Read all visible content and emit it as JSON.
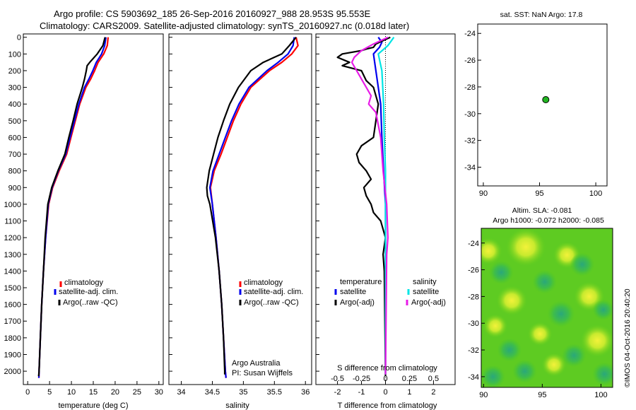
{
  "header": {
    "line1": "Argo profile: CS 5903692_185 26-Sep-2016 20160927_988 28.953S 95.553E",
    "line2": "Climatology: CARS2009. Satellite-adjusted climatology: synTS_20160927.nc (0.018d later)"
  },
  "colors": {
    "climatology": "#ff0000",
    "satellite": "#0000ee",
    "argo": "#000000",
    "salinity_satellite": "#00e5e5",
    "salinity_argo": "#e81ce8",
    "marker": "#22b522"
  },
  "chart_data": [
    {
      "type": "line",
      "panel": "temperature",
      "xlabel": "temperature (deg C)",
      "ylabel": "",
      "xlim": [
        -1,
        31
      ],
      "ylim": [
        2080,
        0
      ],
      "xticks": [
        0,
        5,
        10,
        15,
        20,
        25,
        30
      ],
      "yticks": [
        0,
        100,
        200,
        300,
        400,
        500,
        600,
        700,
        800,
        900,
        1000,
        1100,
        1200,
        1300,
        1400,
        1500,
        1600,
        1700,
        1800,
        1900,
        2000
      ],
      "legend": [
        "climatology",
        "satellite-adj. clim.",
        "Argo(..raw -QC)"
      ],
      "legend_position": "lower-right",
      "series": [
        {
          "name": "climatology",
          "depth": [
            0,
            50,
            100,
            150,
            200,
            250,
            300,
            400,
            500,
            600,
            700,
            800,
            900,
            1000,
            1200,
            1400,
            1600,
            1800,
            2000,
            2040
          ],
          "values": [
            18.4,
            18.2,
            17.4,
            16.1,
            15.3,
            14.4,
            13.3,
            11.9,
            10.9,
            9.9,
            8.9,
            7.2,
            5.7,
            4.8,
            4.1,
            3.6,
            3.2,
            2.9,
            2.6,
            2.55
          ]
        },
        {
          "name": "satellite-adj. clim.",
          "depth": [
            0,
            50,
            100,
            150,
            200,
            250,
            300,
            400,
            500,
            600,
            700,
            800,
            900,
            1000,
            1200,
            1400,
            1600,
            1800,
            2000,
            2040
          ],
          "values": [
            17.9,
            17.6,
            16.9,
            15.7,
            14.9,
            14.0,
            13.0,
            11.7,
            10.7,
            9.7,
            8.7,
            7.0,
            5.6,
            4.7,
            4.1,
            3.6,
            3.2,
            2.9,
            2.6,
            2.55
          ]
        },
        {
          "name": "Argo(..raw -QC)",
          "depth": [
            0,
            50,
            100,
            150,
            170,
            200,
            250,
            300,
            400,
            500,
            600,
            700,
            800,
            900,
            1000,
            1200,
            1400,
            1600,
            1800,
            2000,
            2030
          ],
          "values": [
            17.7,
            17.2,
            15.9,
            14.2,
            13.6,
            13.4,
            13.0,
            12.5,
            11.3,
            10.4,
            9.4,
            8.5,
            6.9,
            5.5,
            4.6,
            4.0,
            3.6,
            3.2,
            2.9,
            2.6,
            2.5
          ]
        }
      ]
    },
    {
      "type": "line",
      "panel": "salinity",
      "xlabel": "salinity",
      "ylabel": "",
      "xlim": [
        33.8,
        36.1
      ],
      "ylim": [
        2080,
        0
      ],
      "xticks": [
        34,
        34.5,
        35,
        35.5,
        36
      ],
      "legend": [
        "climatology",
        "satellite-adj. clim.",
        "Argo(..raw -QC)"
      ],
      "legend_position": "lower-right",
      "annotation": [
        "Argo Australia",
        "PI: Susan Wijffels"
      ],
      "series": [
        {
          "name": "climatology",
          "depth": [
            0,
            50,
            100,
            150,
            200,
            300,
            400,
            500,
            600,
            700,
            800,
            900,
            1000,
            1200,
            1400,
            1600,
            1800,
            2000,
            2040
          ],
          "values": [
            35.85,
            35.88,
            35.78,
            35.62,
            35.42,
            35.12,
            34.96,
            34.84,
            34.74,
            34.64,
            34.53,
            34.47,
            34.5,
            34.56,
            34.61,
            34.65,
            34.68,
            34.71,
            34.72
          ]
        },
        {
          "name": "satellite-adj. clim.",
          "depth": [
            0,
            50,
            100,
            150,
            200,
            300,
            400,
            500,
            600,
            700,
            800,
            900,
            1000,
            1200,
            1400,
            1600,
            1800,
            2000,
            2040
          ],
          "values": [
            35.82,
            35.8,
            35.72,
            35.56,
            35.38,
            35.09,
            34.93,
            34.81,
            34.71,
            34.61,
            34.51,
            34.46,
            34.5,
            34.56,
            34.61,
            34.65,
            34.68,
            34.71,
            34.72
          ]
        },
        {
          "name": "Argo(..raw -QC)",
          "depth": [
            0,
            50,
            100,
            150,
            200,
            300,
            400,
            500,
            600,
            700,
            800,
            900,
            950,
            1000,
            1200,
            1400,
            1600,
            1800,
            2000,
            2020
          ],
          "values": [
            35.85,
            35.74,
            35.62,
            35.32,
            35.12,
            34.92,
            34.78,
            34.68,
            34.59,
            34.52,
            34.45,
            34.41,
            34.42,
            34.46,
            34.55,
            34.61,
            34.65,
            34.68,
            34.7,
            34.7
          ]
        }
      ]
    },
    {
      "type": "line",
      "panel": "difference",
      "xlabel": "T difference from climatology",
      "ylabel": "",
      "xlim": [
        -2.9,
        2.9
      ],
      "ylim": [
        2080,
        0
      ],
      "xticks": [
        -2,
        -1,
        0,
        1,
        2
      ],
      "secondary_xaxis": {
        "label": "S difference from climatology",
        "ticks": [
          "-0.5",
          "-0.25",
          "0",
          "0.25",
          "0.5"
        ]
      },
      "legend_groups": [
        {
          "title": "temperature",
          "items": [
            "satellite",
            "Argo(-adj)"
          ]
        },
        {
          "title": "salinity",
          "items": [
            "satellite",
            "Argo(-adj)"
          ]
        }
      ],
      "series": [
        {
          "name": "temperature satellite",
          "depth": [
            0,
            30,
            60,
            100,
            150,
            200,
            300,
            400,
            600,
            800,
            1000,
            1200,
            1400,
            2000,
            2020
          ],
          "values": [
            -0.3,
            -0.15,
            -0.25,
            -0.5,
            -0.45,
            -0.4,
            -0.3,
            -0.2,
            -0.15,
            -0.08,
            0,
            0,
            0,
            0,
            0
          ]
        },
        {
          "name": "temperature Argo(-adj)",
          "depth": [
            0,
            20,
            40,
            60,
            70,
            80,
            100,
            120,
            150,
            170,
            200,
            260,
            300,
            400,
            500,
            600,
            650,
            700,
            750,
            800,
            850,
            900,
            950,
            1000,
            1050,
            1100,
            1200,
            1300,
            1400,
            2000,
            2030
          ],
          "values": [
            0.2,
            -0.1,
            -0.4,
            -0.5,
            -0.8,
            -1.0,
            -1.8,
            -2.0,
            -1.5,
            -1.8,
            -1.0,
            -0.8,
            -0.5,
            -0.3,
            -0.4,
            -0.5,
            -1.0,
            -1.2,
            -1.1,
            -0.8,
            -0.6,
            -0.9,
            -0.8,
            -0.6,
            -0.5,
            -0.2,
            0.0,
            -0.1,
            -0.05,
            0,
            0
          ]
        },
        {
          "name": "salinity satellite",
          "depth": [
            0,
            50,
            100,
            200,
            400,
            600,
            800,
            1000,
            1200,
            2020
          ],
          "values": [
            0.35,
            0.1,
            -0.3,
            -0.15,
            -0.08,
            -0.05,
            0,
            0,
            0,
            0
          ]
        },
        {
          "name": "salinity Argo(-adj)",
          "depth": [
            0,
            40,
            80,
            120,
            150,
            200,
            250,
            300,
            350,
            400,
            450,
            600,
            800,
            1000,
            1200,
            1300,
            2020
          ],
          "values": [
            0.1,
            -0.5,
            -1.0,
            -1.3,
            -1.4,
            -1.2,
            -1.0,
            -0.8,
            -0.6,
            -0.7,
            -0.4,
            -0.2,
            -0.1,
            0.05,
            0.1,
            0.05,
            0
          ]
        }
      ]
    },
    {
      "type": "scatter",
      "panel": "location",
      "title": "sat. SST: NaN Argo: 17.8",
      "xlim": [
        89.5,
        101
      ],
      "ylim": [
        -35.4,
        -23.3
      ],
      "xticks": [
        90,
        95,
        100
      ],
      "yticks": [
        -24,
        -26,
        -28,
        -30,
        -32,
        -34
      ],
      "points": [
        {
          "x": 95.553,
          "y": -28.953
        }
      ]
    },
    {
      "type": "heatmap",
      "panel": "altimetry",
      "title_lines": [
        "Altim. SLA: -0.081",
        "Argo h1000: -0.072 h2000: -0.085"
      ],
      "xlim": [
        89.8,
        101
      ],
      "ylim": [
        -34.8,
        -22.9
      ],
      "xticks": [
        90,
        95,
        100
      ],
      "yticks": [
        -24,
        -26,
        -28,
        -30,
        -32,
        -34
      ],
      "blobs": [
        {
          "x": 90.4,
          "y": -24.6,
          "r": 0.9,
          "kind": "high"
        },
        {
          "x": 93.6,
          "y": -24.3,
          "r": 1.3,
          "kind": "high"
        },
        {
          "x": 97.1,
          "y": -24.9,
          "r": 0.9,
          "kind": "high"
        },
        {
          "x": 91.5,
          "y": -26.2,
          "r": 0.8,
          "kind": "low"
        },
        {
          "x": 95.2,
          "y": -26.9,
          "r": 0.8,
          "kind": "low"
        },
        {
          "x": 98.4,
          "y": -25.6,
          "r": 0.8,
          "kind": "low"
        },
        {
          "x": 92.4,
          "y": -28.3,
          "r": 1.0,
          "kind": "high"
        },
        {
          "x": 99.0,
          "y": -28.0,
          "r": 1.0,
          "kind": "high"
        },
        {
          "x": 96.6,
          "y": -29.3,
          "r": 0.9,
          "kind": "low"
        },
        {
          "x": 100.2,
          "y": -29.0,
          "r": 0.7,
          "kind": "low"
        },
        {
          "x": 91.0,
          "y": -30.2,
          "r": 0.8,
          "kind": "high"
        },
        {
          "x": 94.8,
          "y": -30.8,
          "r": 0.8,
          "kind": "high"
        },
        {
          "x": 99.7,
          "y": -31.3,
          "r": 1.1,
          "kind": "high"
        },
        {
          "x": 92.2,
          "y": -32.0,
          "r": 0.8,
          "kind": "low"
        },
        {
          "x": 97.7,
          "y": -32.4,
          "r": 0.8,
          "kind": "low"
        },
        {
          "x": 90.8,
          "y": -34.0,
          "r": 0.8,
          "kind": "low"
        },
        {
          "x": 93.5,
          "y": -33.6,
          "r": 0.8,
          "kind": "low"
        },
        {
          "x": 96.0,
          "y": -33.1,
          "r": 0.8,
          "kind": "high"
        },
        {
          "x": 100.3,
          "y": -33.8,
          "r": 0.8,
          "kind": "low"
        }
      ]
    }
  ],
  "labels": {
    "legend_climatology": "climatology",
    "legend_satellite": "satellite-adj. clim.",
    "legend_argo": "Argo(..raw -QC)",
    "diff_temperature": "temperature",
    "diff_salinity": "salinity",
    "diff_satellite": "satellite",
    "diff_argo": "Argo(-adj)",
    "annotation_line1": "Argo Australia",
    "annotation_line2": "PI: Susan Wijffels",
    "s_diff_label": "S difference from climatology",
    "credit": "©IMOS 04-Oct-2016 20:40:20"
  }
}
